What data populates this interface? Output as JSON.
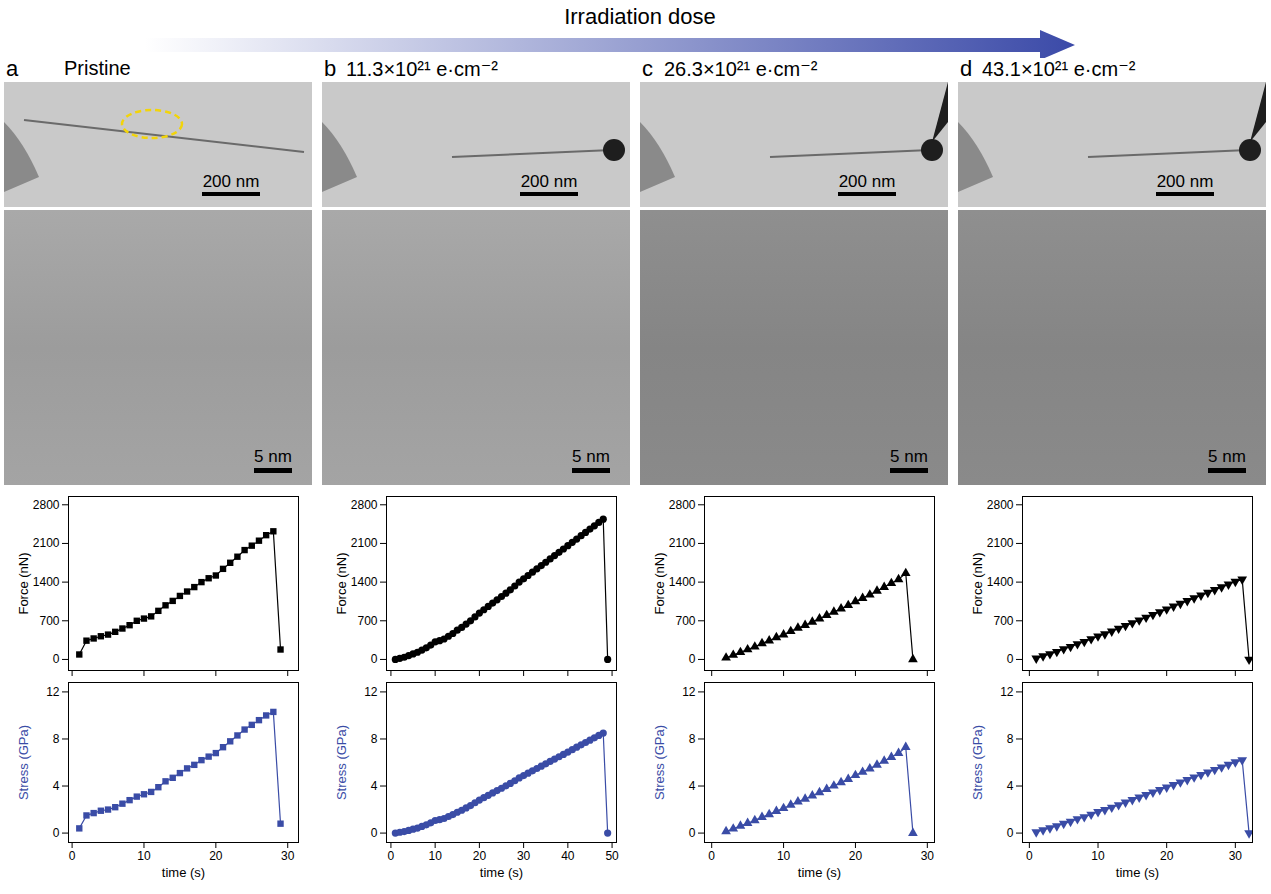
{
  "header": {
    "title": "Irradiation dose"
  },
  "panels": [
    {
      "letter": "a",
      "title": "Pristine",
      "scale_bars": [
        "200 nm",
        "5 nm"
      ]
    },
    {
      "letter": "b",
      "title": "11.3×10²¹ e·cm⁻²",
      "scale_bars": [
        "200 nm",
        "5 nm"
      ]
    },
    {
      "letter": "c",
      "title": "26.3×10²¹ e·cm⁻²",
      "scale_bars": [
        "200 nm",
        "5 nm"
      ]
    },
    {
      "letter": "d",
      "title": "43.1×10²¹ e·cm⁻²",
      "scale_bars": [
        "200 nm",
        "5 nm"
      ]
    }
  ],
  "chart_data": [
    {
      "type": "line",
      "y_label": "Force (nN)",
      "color": "#000000",
      "marker": "square",
      "tick_labels": "y",
      "x": [
        1,
        2,
        3,
        4,
        5,
        6,
        7,
        8,
        9,
        10,
        11,
        12,
        13,
        14,
        15,
        16,
        17,
        18,
        19,
        20,
        21,
        22,
        23,
        24,
        25,
        26,
        27,
        28,
        29
      ],
      "values": [
        90,
        340,
        380,
        420,
        450,
        500,
        560,
        620,
        700,
        740,
        780,
        880,
        980,
        1060,
        1150,
        1230,
        1310,
        1400,
        1470,
        1520,
        1640,
        1750,
        1860,
        1980,
        2060,
        2150,
        2250,
        2320,
        180
      ],
      "xlim": [
        -0.5,
        31.5
      ],
      "xticks": [
        0,
        10,
        20,
        30
      ],
      "ylim": [
        -200,
        2950
      ],
      "yticks": [
        0,
        700,
        1400,
        2100,
        2800
      ]
    },
    {
      "type": "line",
      "x_label": "time (s)",
      "y_label": "Stress (GPa)",
      "color": "#3a4ca6",
      "marker": "square",
      "x": [
        1,
        2,
        3,
        4,
        5,
        6,
        7,
        8,
        9,
        10,
        11,
        12,
        13,
        14,
        15,
        16,
        17,
        18,
        19,
        20,
        21,
        22,
        23,
        24,
        25,
        26,
        27,
        28,
        29
      ],
      "values": [
        0.4,
        1.5,
        1.7,
        1.9,
        2.0,
        2.2,
        2.5,
        2.8,
        3.1,
        3.3,
        3.5,
        3.9,
        4.4,
        4.7,
        5.1,
        5.5,
        5.8,
        6.2,
        6.5,
        6.8,
        7.3,
        7.8,
        8.3,
        8.8,
        9.2,
        9.6,
        10.0,
        10.3,
        0.8
      ],
      "xlim": [
        -0.5,
        31.5
      ],
      "xticks": [
        0,
        10,
        20,
        30
      ],
      "ylim": [
        -0.8,
        12.8
      ],
      "yticks": [
        0,
        4,
        8,
        12
      ]
    },
    {
      "type": "line",
      "y_label": "Force (nN)",
      "color": "#000000",
      "marker": "circle",
      "tick_labels": "y",
      "x": [
        1,
        2,
        3,
        4,
        5,
        6,
        7,
        8,
        9,
        10,
        11,
        12,
        13,
        14,
        15,
        16,
        17,
        18,
        19,
        20,
        21,
        22,
        23,
        24,
        25,
        26,
        27,
        28,
        29,
        30,
        31,
        32,
        33,
        34,
        35,
        36,
        37,
        38,
        39,
        40,
        41,
        42,
        43,
        44,
        45,
        46,
        47,
        48,
        49
      ],
      "values": [
        0,
        20,
        40,
        70,
        100,
        130,
        170,
        210,
        260,
        320,
        340,
        370,
        420,
        470,
        530,
        580,
        640,
        700,
        770,
        840,
        900,
        960,
        1020,
        1080,
        1140,
        1200,
        1260,
        1330,
        1400,
        1460,
        1520,
        1580,
        1640,
        1700,
        1760,
        1820,
        1880,
        1940,
        2000,
        2060,
        2120,
        2180,
        2240,
        2300,
        2360,
        2420,
        2480,
        2540,
        0
      ],
      "xlim": [
        -1,
        51
      ],
      "xticks": [
        0,
        10,
        20,
        30,
        40,
        50
      ],
      "ylim": [
        -200,
        2950
      ],
      "yticks": [
        0,
        700,
        1400,
        2100,
        2800
      ]
    },
    {
      "type": "line",
      "x_label": "time (s)",
      "y_label": "Stress (GPa)",
      "color": "#3a4ca6",
      "marker": "circle",
      "x": [
        1,
        2,
        3,
        4,
        5,
        6,
        7,
        8,
        9,
        10,
        11,
        12,
        13,
        14,
        15,
        16,
        17,
        18,
        19,
        20,
        21,
        22,
        23,
        24,
        25,
        26,
        27,
        28,
        29,
        30,
        31,
        32,
        33,
        34,
        35,
        36,
        37,
        38,
        39,
        40,
        41,
        42,
        43,
        44,
        45,
        46,
        47,
        48,
        49
      ],
      "values": [
        0,
        0.07,
        0.13,
        0.23,
        0.33,
        0.43,
        0.57,
        0.7,
        0.87,
        1.07,
        1.14,
        1.24,
        1.41,
        1.57,
        1.77,
        1.94,
        2.14,
        2.34,
        2.58,
        2.81,
        3.01,
        3.21,
        3.41,
        3.61,
        3.81,
        4.02,
        4.22,
        4.45,
        4.69,
        4.89,
        5.09,
        5.29,
        5.49,
        5.69,
        5.89,
        6.09,
        6.29,
        6.49,
        6.69,
        6.89,
        7.09,
        7.3,
        7.5,
        7.7,
        7.9,
        8.1,
        8.3,
        8.5,
        0
      ],
      "xlim": [
        -1,
        51
      ],
      "xticks": [
        0,
        10,
        20,
        30,
        40,
        50
      ],
      "ylim": [
        -0.8,
        12.8
      ],
      "yticks": [
        0,
        4,
        8,
        12
      ]
    },
    {
      "type": "line",
      "y_label": "Force (nN)",
      "color": "#000000",
      "marker": "triangle",
      "tick_labels": "y",
      "x": [
        2,
        3,
        4,
        5,
        6,
        7,
        8,
        9,
        10,
        11,
        12,
        13,
        14,
        15,
        16,
        17,
        18,
        19,
        20,
        21,
        22,
        23,
        24,
        25,
        26,
        27,
        28
      ],
      "values": [
        30,
        80,
        130,
        180,
        230,
        290,
        340,
        400,
        450,
        510,
        570,
        620,
        680,
        740,
        800,
        860,
        920,
        980,
        1050,
        1110,
        1170,
        1240,
        1310,
        1380,
        1450,
        1560,
        0
      ],
      "xlim": [
        -1,
        31
      ],
      "xticks": [
        0,
        10,
        20,
        30
      ],
      "ylim": [
        -200,
        2950
      ],
      "yticks": [
        0,
        700,
        1400,
        2100,
        2800
      ]
    },
    {
      "type": "line",
      "x_label": "time (s)",
      "y_label": "Stress (GPa)",
      "color": "#3a4ca6",
      "marker": "triangle",
      "x": [
        2,
        3,
        4,
        5,
        6,
        7,
        8,
        9,
        10,
        11,
        12,
        13,
        14,
        15,
        16,
        17,
        18,
        19,
        20,
        21,
        22,
        23,
        24,
        25,
        26,
        27,
        28
      ],
      "values": [
        0.14,
        0.37,
        0.61,
        0.84,
        1.08,
        1.36,
        1.59,
        1.87,
        2.11,
        2.39,
        2.67,
        2.9,
        3.18,
        3.46,
        3.74,
        4.02,
        4.31,
        4.59,
        4.91,
        5.19,
        5.48,
        5.8,
        6.13,
        6.46,
        6.79,
        7.3,
        0
      ],
      "xlim": [
        -1,
        31
      ],
      "xticks": [
        0,
        10,
        20,
        30
      ],
      "ylim": [
        -0.8,
        12.8
      ],
      "yticks": [
        0,
        4,
        8,
        12
      ]
    },
    {
      "type": "line",
      "y_label": "Force (nN)",
      "color": "#000000",
      "marker": "triangle-down",
      "tick_labels": "y",
      "x": [
        1,
        2,
        3,
        4,
        5,
        6,
        7,
        8,
        9,
        10,
        11,
        12,
        13,
        14,
        15,
        16,
        17,
        18,
        19,
        20,
        21,
        22,
        23,
        24,
        25,
        26,
        27,
        28,
        29,
        30,
        31,
        32
      ],
      "values": [
        20,
        60,
        100,
        140,
        190,
        230,
        280,
        320,
        370,
        420,
        460,
        510,
        560,
        610,
        660,
        710,
        760,
        810,
        860,
        910,
        960,
        1010,
        1060,
        1110,
        1160,
        1210,
        1260,
        1310,
        1360,
        1410,
        1450,
        0
      ],
      "xlim": [
        -1,
        32.5
      ],
      "xticks": [
        0,
        10,
        20,
        30
      ],
      "ylim": [
        -200,
        2950
      ],
      "yticks": [
        0,
        700,
        1400,
        2100,
        2800
      ]
    },
    {
      "type": "line",
      "x_label": "time (s)",
      "y_label": "Stress (GPa)",
      "color": "#3a4ca6",
      "marker": "triangle-down",
      "x": [
        1,
        2,
        3,
        4,
        5,
        6,
        7,
        8,
        9,
        10,
        11,
        12,
        13,
        14,
        15,
        16,
        17,
        18,
        19,
        20,
        21,
        22,
        23,
        24,
        25,
        26,
        27,
        28,
        29,
        30,
        31,
        32
      ],
      "values": [
        0.09,
        0.26,
        0.43,
        0.6,
        0.81,
        0.98,
        1.2,
        1.37,
        1.58,
        1.8,
        1.97,
        2.18,
        2.39,
        2.61,
        2.82,
        3.04,
        3.25,
        3.46,
        3.68,
        3.89,
        4.1,
        4.32,
        4.53,
        4.75,
        4.96,
        5.17,
        5.39,
        5.6,
        5.82,
        6.03,
        6.2,
        0
      ],
      "xlim": [
        -1,
        32.5
      ],
      "xticks": [
        0,
        10,
        20,
        30
      ],
      "ylim": [
        -0.8,
        12.8
      ],
      "yticks": [
        0,
        4,
        8,
        12
      ]
    }
  ]
}
